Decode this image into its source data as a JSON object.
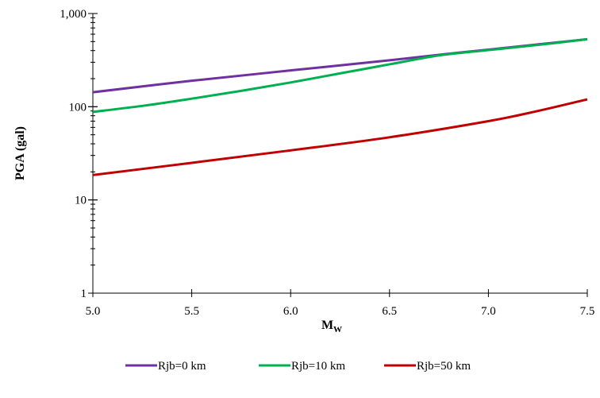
{
  "chart_data": {
    "type": "line",
    "title": "",
    "xlabel": "M",
    "xlabel_sub": "W",
    "ylabel": "PGA (gal)",
    "x_scale": "linear",
    "y_scale": "log",
    "xlim": [
      5.0,
      7.5
    ],
    "ylim": [
      1,
      1000
    ],
    "x_ticks": [
      "5.0",
      "5.5",
      "6.0",
      "6.5",
      "7.0",
      "7.5"
    ],
    "y_ticks": [
      "1",
      "10",
      "100",
      "1,000"
    ],
    "grid": false,
    "legend_position": "bottom",
    "series": [
      {
        "name": "Rjb=0 km",
        "color": "#7030A0",
        "x": [
          5.0,
          5.5,
          6.0,
          6.5,
          6.8,
          7.0,
          7.5
        ],
        "y": [
          143,
          190,
          245,
          315,
          370,
          410,
          530
        ]
      },
      {
        "name": "Rjb=10 km",
        "color": "#00B050",
        "x": [
          5.0,
          5.25,
          5.5,
          5.75,
          6.0,
          6.25,
          6.5,
          6.75,
          7.0,
          7.25,
          7.5
        ],
        "y": [
          88,
          102,
          122,
          148,
          182,
          228,
          285,
          355,
          405,
          460,
          530
        ]
      },
      {
        "name": "Rjb=50 km",
        "color": "#C00000",
        "x": [
          5.0,
          5.5,
          6.0,
          6.5,
          7.0,
          7.25,
          7.5
        ],
        "y": [
          18.5,
          25,
          34,
          47,
          70,
          90,
          120
        ]
      }
    ]
  }
}
